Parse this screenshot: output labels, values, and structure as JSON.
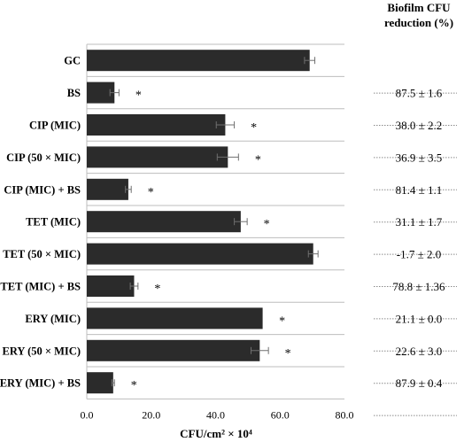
{
  "chart_data": {
    "type": "bar",
    "orientation": "horizontal",
    "xlabel": "CFU/cm² × 10⁴",
    "xlim": [
      0,
      80
    ],
    "xticks": [
      "0.0",
      "20.0",
      "40.0",
      "60.0",
      "80.0"
    ],
    "grid": "horizontal lines between rows",
    "bar_color": "#2b2b2b",
    "categories": [
      "GC",
      "BS",
      "CIP (MIC)",
      "CIP (50 × MIC)",
      "CIP (MIC) + BS",
      "TET (MIC)",
      "TET (50 × MIC)",
      "TET (MIC) + BS",
      "ERY (MIC)",
      "ERY (50 × MIC)",
      "ERY (MIC) + BS"
    ],
    "values": [
      69.2,
      8.6,
      43.0,
      43.8,
      12.9,
      47.8,
      70.3,
      14.7,
      54.6,
      53.7,
      8.2
    ],
    "errors": [
      1.6,
      1.4,
      2.8,
      3.3,
      0.9,
      2.0,
      1.5,
      1.2,
      0.0,
      2.7,
      0.4
    ],
    "significance": [
      "",
      "*",
      "*",
      "*",
      "*",
      "*",
      "",
      "*",
      "*",
      "*",
      "*"
    ],
    "table": {
      "header_line1": "Biofilm CFU",
      "header_line2": "reduction (%)",
      "values": [
        "",
        "87.5 ± 1.6",
        "38.0 ± 2.2",
        "36.9 ± 3.5",
        "81.4 ± 1.1",
        "31.1 ± 1.7",
        "-1.7 ± 2.0",
        "78.8 ± 1.36",
        "21.1 ± 0.0",
        "22.6 ± 3.0",
        "87.9 ± 0.4"
      ]
    }
  }
}
